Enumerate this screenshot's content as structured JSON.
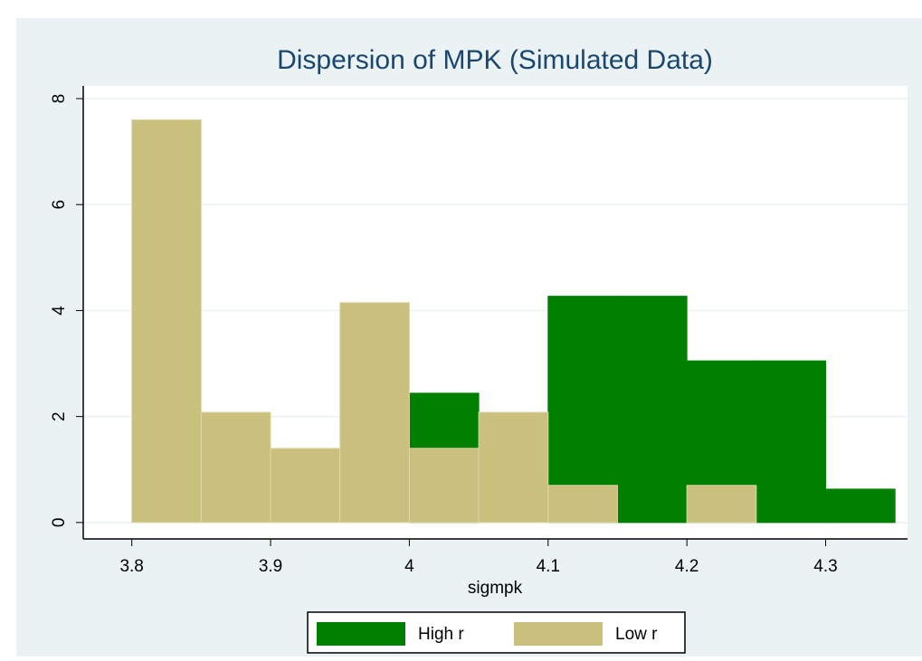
{
  "chart_data": {
    "type": "histogram",
    "title": "Dispersion of MPK (Simulated Data)",
    "xlabel": "sigmpk",
    "bins": [
      3.8,
      3.85,
      3.9,
      3.95,
      4.0,
      4.05,
      4.1,
      4.15,
      4.2,
      4.25,
      4.3,
      4.35
    ],
    "series": [
      {
        "name": "High r",
        "color": "#008000",
        "values": [
          0,
          0,
          0,
          0,
          2.44,
          0,
          4.27,
          4.27,
          3.05,
          3.05,
          0.63
        ]
      },
      {
        "name": "Low r",
        "color": "#c9c07e",
        "values": [
          7.6,
          2.08,
          1.4,
          4.15,
          1.4,
          2.08,
          0.7,
          0,
          0.7,
          0,
          0
        ]
      }
    ],
    "xlim": [
      3.765,
      4.359
    ],
    "ylim": [
      -0.31,
      8.24
    ],
    "xticks": [
      3.8,
      3.9,
      4,
      4.1,
      4.2,
      4.3
    ],
    "yticks": [
      0,
      2,
      4,
      6,
      8
    ],
    "grid": true
  }
}
